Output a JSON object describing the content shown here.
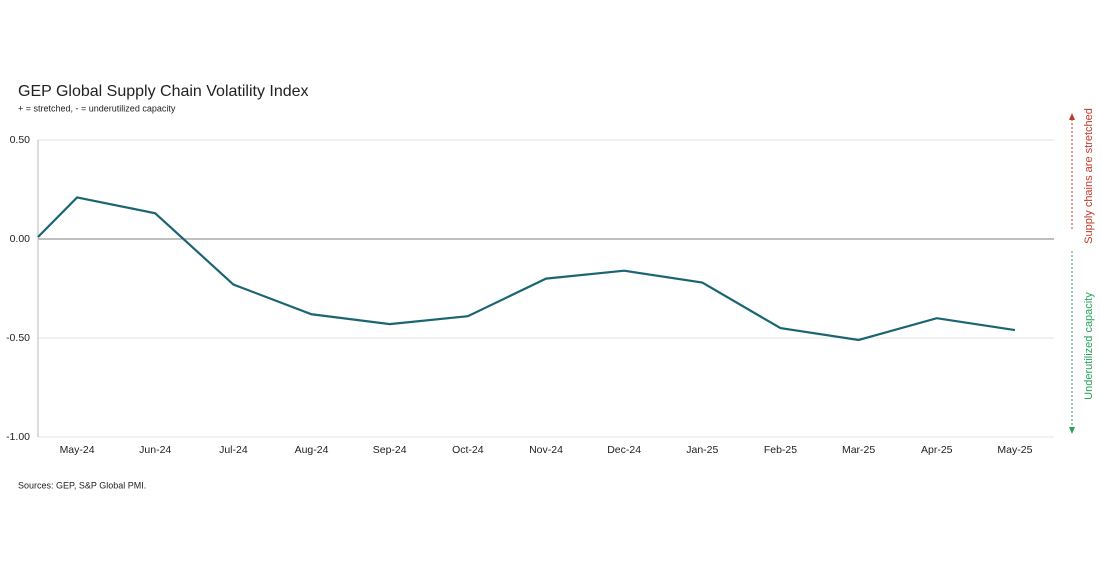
{
  "chart_data": {
    "type": "line",
    "title": "GEP Global Supply Chain Volatility Index",
    "subtitle": "+ = stretched, - = underutilized capacity",
    "categories": [
      null,
      "May-24",
      "Jun-24",
      "Jul-24",
      "Aug-24",
      "Sep-24",
      "Oct-24",
      "Nov-24",
      "Dec-24",
      "Jan-25",
      "Feb-25",
      "Mar-25",
      "Apr-25",
      "May-25"
    ],
    "series": [
      {
        "color": "#1b6572",
        "values": [
          0.01,
          0.21,
          0.13,
          -0.23,
          -0.38,
          -0.43,
          -0.39,
          -0.2,
          -0.16,
          -0.22,
          -0.45,
          -0.51,
          -0.4,
          -0.46
        ]
      }
    ],
    "ylim": [
      -1,
      0.5
    ],
    "yticks": [
      {
        "value": -1,
        "label": "-1.00"
      },
      {
        "value": -0.5,
        "label": "-0.50"
      },
      {
        "value": 0,
        "label": "0.00"
      },
      {
        "value": 0.5,
        "label": "0.50"
      }
    ],
    "grid": true,
    "annotations": [
      {
        "text": "Supply chains are stretched",
        "color": "#c0392b"
      },
      {
        "text": "Underutilized capacity",
        "color": "#27a35a"
      }
    ],
    "source": "Sources: GEP, S&P Global PMI."
  }
}
